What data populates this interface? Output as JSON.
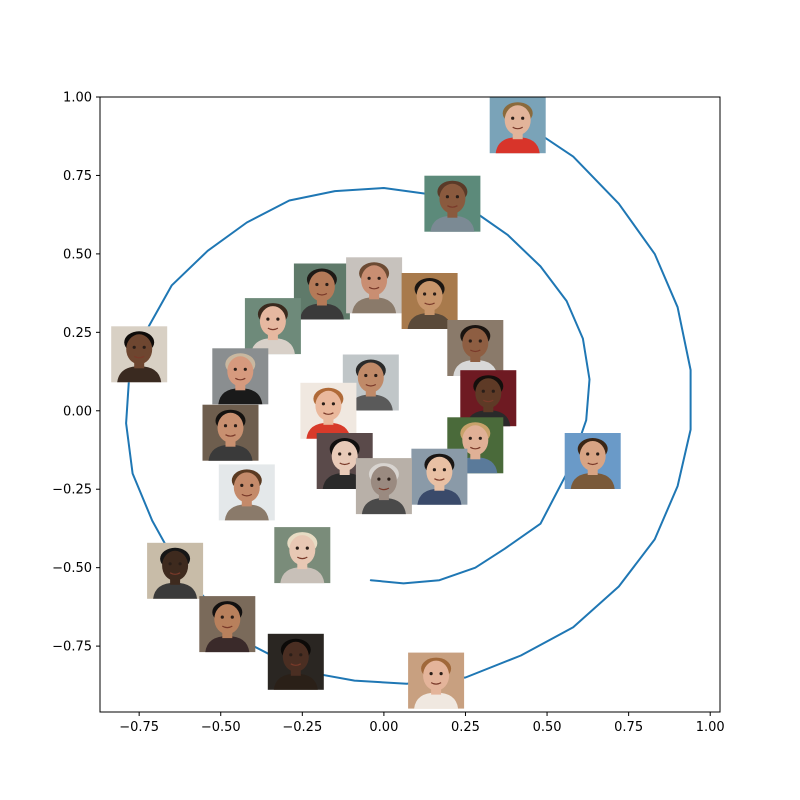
{
  "chart_data": {
    "type": "line",
    "title": "",
    "xlabel": "",
    "ylabel": "",
    "xlim": [
      -0.87,
      1.03
    ],
    "ylim": [
      -0.96,
      1.0
    ],
    "grid": false,
    "line_color": "#1f77b4",
    "x_ticks": [
      -0.75,
      -0.5,
      -0.25,
      0.0,
      0.25,
      0.5,
      0.75,
      1.0
    ],
    "x_tick_labels": [
      "−0.75",
      "−0.50",
      "−0.25",
      "0.00",
      "0.25",
      "0.50",
      "0.75",
      "1.00"
    ],
    "y_ticks": [
      -0.75,
      -0.5,
      -0.25,
      0.0,
      0.25,
      0.5,
      0.75,
      1.0
    ],
    "y_tick_labels": [
      "−0.75",
      "−0.50",
      "−0.25",
      "0.00",
      "0.25",
      "0.50",
      "0.75",
      "1.00"
    ],
    "series": [
      {
        "name": "spiral",
        "x": [
          0.48,
          0.58,
          0.72,
          0.83,
          0.9,
          0.94,
          0.94,
          0.9,
          0.83,
          0.72,
          0.58,
          0.42,
          0.25,
          0.07,
          -0.09,
          -0.25,
          -0.4,
          -0.52,
          -0.63,
          -0.71,
          -0.77,
          -0.79,
          -0.78,
          -0.72,
          -0.65,
          -0.54,
          -0.42,
          -0.29,
          -0.15,
          0.0,
          0.14,
          0.27,
          0.38,
          0.48,
          0.56,
          0.61,
          0.63,
          0.62,
          0.57,
          0.48,
          0.37,
          0.28,
          0.17,
          0.06,
          -0.04
        ],
        "y": [
          0.88,
          0.81,
          0.66,
          0.5,
          0.33,
          0.13,
          -0.06,
          -0.24,
          -0.41,
          -0.56,
          -0.69,
          -0.78,
          -0.85,
          -0.87,
          -0.86,
          -0.83,
          -0.75,
          -0.63,
          -0.5,
          -0.35,
          -0.2,
          -0.04,
          0.12,
          0.27,
          0.4,
          0.51,
          0.6,
          0.67,
          0.7,
          0.71,
          0.69,
          0.64,
          0.56,
          0.46,
          0.35,
          0.23,
          0.1,
          -0.03,
          -0.18,
          -0.36,
          -0.44,
          -0.5,
          -0.54,
          -0.55,
          -0.54
        ]
      }
    ],
    "face_thumbnails": [
      {
        "id": "face-01",
        "x": 0.41,
        "y": 0.91,
        "skin": "#e2b49a",
        "hair": "#8a6a3c",
        "bg": "#7aa3b8",
        "shirt": "#d8342a"
      },
      {
        "id": "face-02",
        "x": 0.21,
        "y": 0.66,
        "skin": "#8a5a3e",
        "hair": "#5a3a28",
        "bg": "#5c8a7a",
        "shirt": "#7b8a94"
      },
      {
        "id": "face-03",
        "x": -0.19,
        "y": 0.38,
        "skin": "#b47a58",
        "hair": "#1e1a16",
        "bg": "#5f7a6a",
        "shirt": "#3a3a3a"
      },
      {
        "id": "face-04",
        "x": -0.03,
        "y": 0.4,
        "skin": "#c98e72",
        "hair": "#6b4a33",
        "bg": "#c7c2bd",
        "shirt": "#8a7a6a"
      },
      {
        "id": "face-05",
        "x": 0.14,
        "y": 0.35,
        "skin": "#c8966c",
        "hair": "#1b1612",
        "bg": "#a87a4c",
        "shirt": "#5a4a3a"
      },
      {
        "id": "face-06",
        "x": -0.34,
        "y": 0.27,
        "skin": "#e6b8a0",
        "hair": "#3a2a1e",
        "bg": "#6e8a7a",
        "shirt": "#d8d0c8"
      },
      {
        "id": "face-07",
        "x": -0.75,
        "y": 0.18,
        "skin": "#6e4630",
        "hair": "#0f0c0a",
        "bg": "#d8d0c4",
        "shirt": "#3a2a20"
      },
      {
        "id": "face-08",
        "x": 0.28,
        "y": 0.2,
        "skin": "#8e5e42",
        "hair": "#1a1410",
        "bg": "#8a7a6a",
        "shirt": "#d8d8d8"
      },
      {
        "id": "face-09",
        "x": -0.44,
        "y": 0.11,
        "skin": "#d69a7e",
        "hair": "#c9b8a0",
        "bg": "#8a8e90",
        "shirt": "#1a1a1a"
      },
      {
        "id": "face-10",
        "x": -0.04,
        "y": 0.09,
        "skin": "#c08a68",
        "hair": "#2a2a2a",
        "bg": "#c0c6c8",
        "shirt": "#5a5a5a"
      },
      {
        "id": "face-11",
        "x": 0.32,
        "y": 0.04,
        "skin": "#5e3a26",
        "hair": "#140f0c",
        "bg": "#6e1a22",
        "shirt": "#2a2a2a"
      },
      {
        "id": "face-12",
        "x": -0.17,
        "y": 0.0,
        "skin": "#eab89c",
        "hair": "#b06a38",
        "bg": "#f0e8e0",
        "shirt": "#d83a2a"
      },
      {
        "id": "face-13",
        "x": -0.47,
        "y": -0.07,
        "skin": "#c89070",
        "hair": "#141210",
        "bg": "#6e5e4e",
        "shirt": "#3a3a3a"
      },
      {
        "id": "face-14",
        "x": 0.28,
        "y": -0.11,
        "skin": "#e0b096",
        "hair": "#c8a26a",
        "bg": "#4a6a3a",
        "shirt": "#5a7a9a"
      },
      {
        "id": "face-15",
        "x": -0.12,
        "y": -0.16,
        "skin": "#e8cab8",
        "hair": "#121010",
        "bg": "#5a4a4a",
        "shirt": "#2a2a2a"
      },
      {
        "id": "face-16",
        "x": 0.64,
        "y": -0.16,
        "skin": "#d8a484",
        "hair": "#3a2616",
        "bg": "#6a9ac8",
        "shirt": "#7a5a3a"
      },
      {
        "id": "face-17",
        "x": 0.17,
        "y": -0.21,
        "skin": "#e8c0a4",
        "hair": "#1a1614",
        "bg": "#8a9aa8",
        "shirt": "#3a4a6a"
      },
      {
        "id": "face-18",
        "x": 0.0,
        "y": -0.24,
        "skin": "#9a8a80",
        "hair": "#d8d4d0",
        "bg": "#b8b0a8",
        "shirt": "#4a4a4a"
      },
      {
        "id": "face-19",
        "x": -0.42,
        "y": -0.26,
        "skin": "#c48a6a",
        "hair": "#5a3a22",
        "bg": "#e4e8ea",
        "shirt": "#8a7a6a"
      },
      {
        "id": "face-20",
        "x": -0.25,
        "y": -0.46,
        "skin": "#e8c8b4",
        "hair": "#e8dcc4",
        "bg": "#7a8c7a",
        "shirt": "#c8c0b8"
      },
      {
        "id": "face-21",
        "x": -0.64,
        "y": -0.51,
        "skin": "#3e2a1e",
        "hair": "#161616",
        "bg": "#c8bca8",
        "shirt": "#3a3a3a"
      },
      {
        "id": "face-22",
        "x": -0.48,
        "y": -0.68,
        "skin": "#b8805c",
        "hair": "#121010",
        "bg": "#7a6a5a",
        "shirt": "#3a2a2a"
      },
      {
        "id": "face-23",
        "x": -0.27,
        "y": -0.8,
        "skin": "#4a2e22",
        "hair": "#0c0a08",
        "bg": "#2a2622",
        "shirt": "#2a2018"
      },
      {
        "id": "face-24",
        "x": 0.16,
        "y": -0.86,
        "skin": "#e4b49a",
        "hair": "#a0683a",
        "bg": "#c8a080",
        "shirt": "#f0e8e0"
      }
    ]
  }
}
